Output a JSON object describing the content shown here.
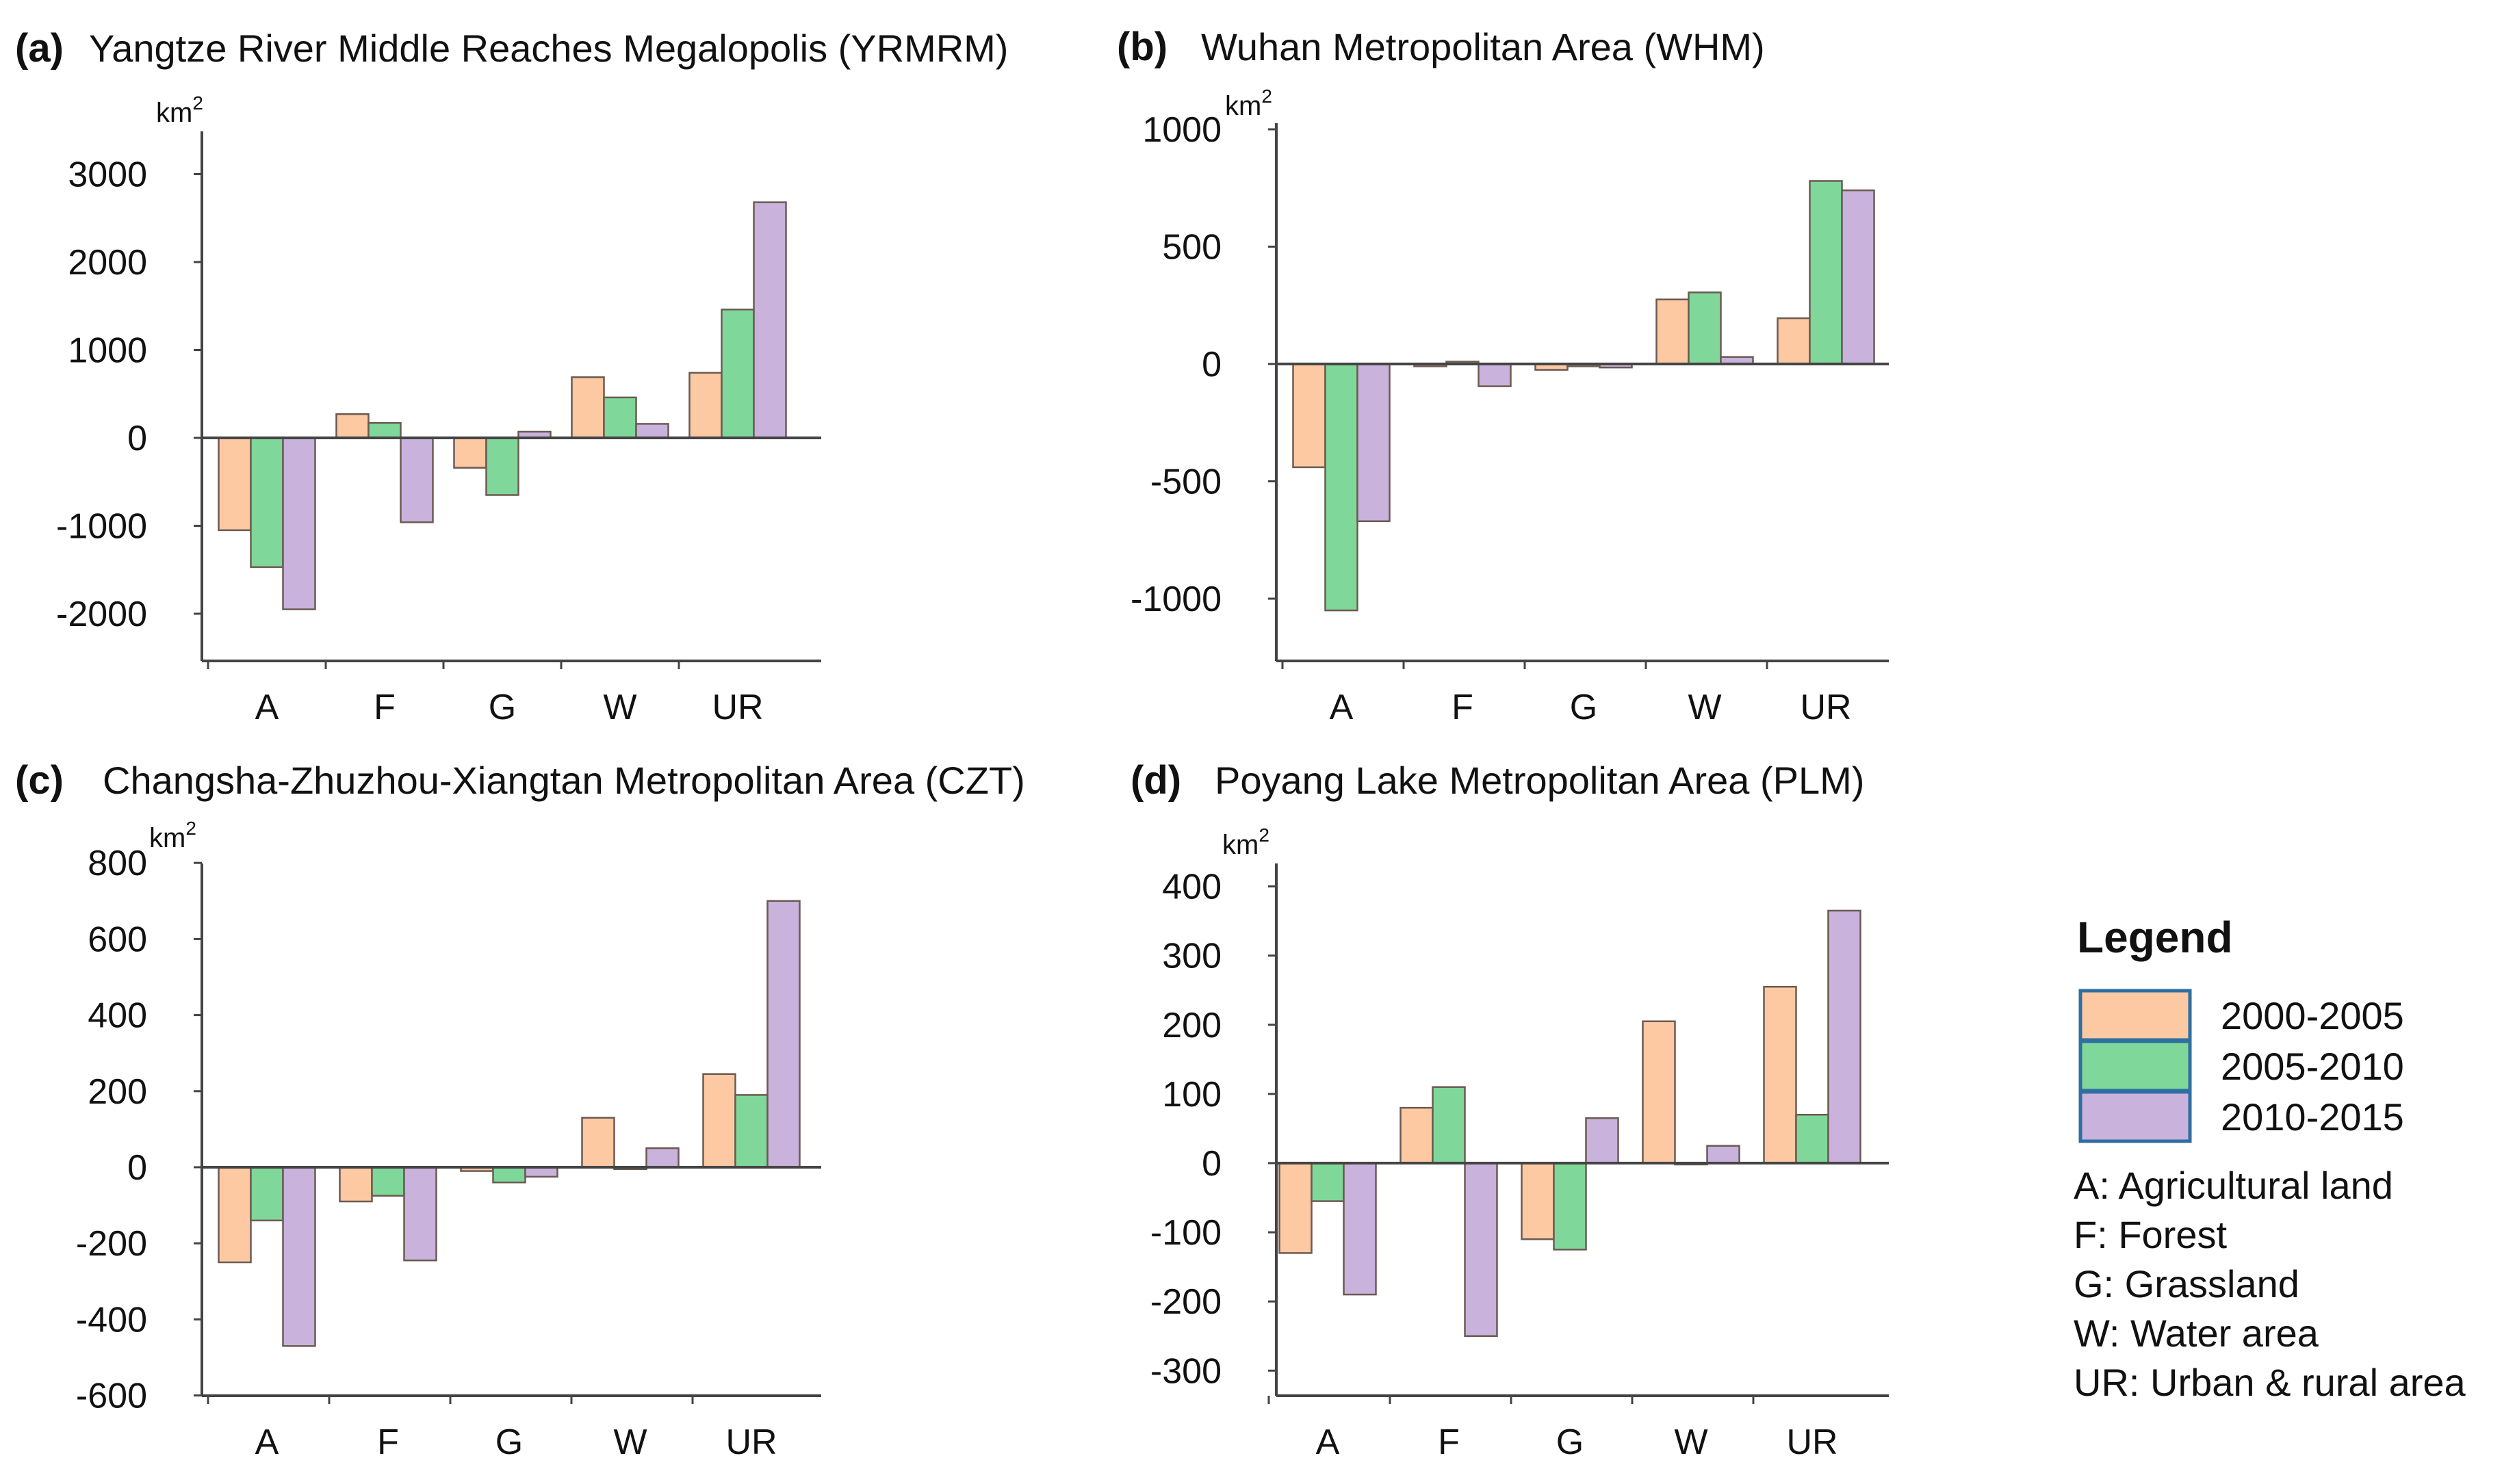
{
  "colors": {
    "s0": "#fcc9a2",
    "s1": "#7fd89a",
    "s2": "#c9b2dc"
  },
  "legend": {
    "title": "Legend",
    "series": [
      "2000-2005",
      "2005-2010",
      "2010-2015"
    ],
    "abbreviations": [
      "A: Agricultural land",
      "F: Forest",
      "G: Grassland",
      "W: Water area",
      "UR: Urban & rural area"
    ]
  },
  "chart_data": [
    {
      "type": "bar",
      "panel_label": "(a)",
      "title": "Yangtze River Middle Reaches Megalopolis (YRMRM)",
      "unit": "km",
      "unit_sup": "2",
      "categories": [
        "A",
        "F",
        "G",
        "W",
        "UR"
      ],
      "yticks": [
        3000,
        2000,
        1000,
        0,
        -1000,
        -2000
      ],
      "ylim": [
        -2500,
        3300
      ],
      "series": [
        {
          "name": "2000-2005",
          "values": [
            -1050,
            270,
            -340,
            690,
            740
          ]
        },
        {
          "name": "2005-2010",
          "values": [
            -1470,
            170,
            -650,
            460,
            1460
          ]
        },
        {
          "name": "2010-2015",
          "values": [
            -1950,
            -960,
            70,
            160,
            2680
          ]
        }
      ]
    },
    {
      "type": "bar",
      "panel_label": "(b)",
      "title": "Wuhan Metropolitan Area (WHM)",
      "unit": "km",
      "unit_sup": "2",
      "categories": [
        "A",
        "F",
        "G",
        "W",
        "UR"
      ],
      "yticks": [
        1000,
        500,
        0,
        -500,
        -1000
      ],
      "ylim": [
        -1260,
        1010
      ],
      "series": [
        {
          "name": "2000-2005",
          "values": [
            -440,
            -10,
            -25,
            275,
            195
          ]
        },
        {
          "name": "2005-2010",
          "values": [
            -1050,
            10,
            -10,
            305,
            780
          ]
        },
        {
          "name": "2010-2015",
          "values": [
            -670,
            -95,
            -15,
            30,
            740
          ]
        }
      ]
    },
    {
      "type": "bar",
      "panel_label": "(c)",
      "title": "Changsha-Zhuzhou-Xiangtan Metropolitan Area (CZT)",
      "unit": "km",
      "unit_sup": "2",
      "categories": [
        "A",
        "F",
        "G",
        "W",
        "UR"
      ],
      "yticks": [
        800,
        600,
        400,
        200,
        0,
        -200,
        -400,
        -600
      ],
      "ylim": [
        -600,
        800
      ],
      "series": [
        {
          "name": "2000-2005",
          "values": [
            -250,
            -90,
            -10,
            130,
            245
          ]
        },
        {
          "name": "2005-2010",
          "values": [
            -140,
            -75,
            -40,
            -5,
            190
          ]
        },
        {
          "name": "2010-2015",
          "values": [
            -470,
            -245,
            -25,
            50,
            700
          ]
        }
      ]
    },
    {
      "type": "bar",
      "panel_label": "(d)",
      "title": "Poyang Lake Metropolitan Area (PLM)",
      "unit": "km",
      "unit_sup": "2",
      "categories": [
        "A",
        "F",
        "G",
        "W",
        "UR"
      ],
      "yticks": [
        400,
        300,
        200,
        100,
        0,
        -100,
        -200,
        -300
      ],
      "ylim": [
        -335,
        425
      ],
      "series": [
        {
          "name": "2000-2005",
          "values": [
            -130,
            80,
            -110,
            205,
            255
          ]
        },
        {
          "name": "2005-2010",
          "values": [
            -55,
            110,
            -125,
            0,
            70
          ]
        },
        {
          "name": "2010-2015",
          "values": [
            -190,
            -250,
            65,
            25,
            365
          ]
        }
      ]
    }
  ]
}
